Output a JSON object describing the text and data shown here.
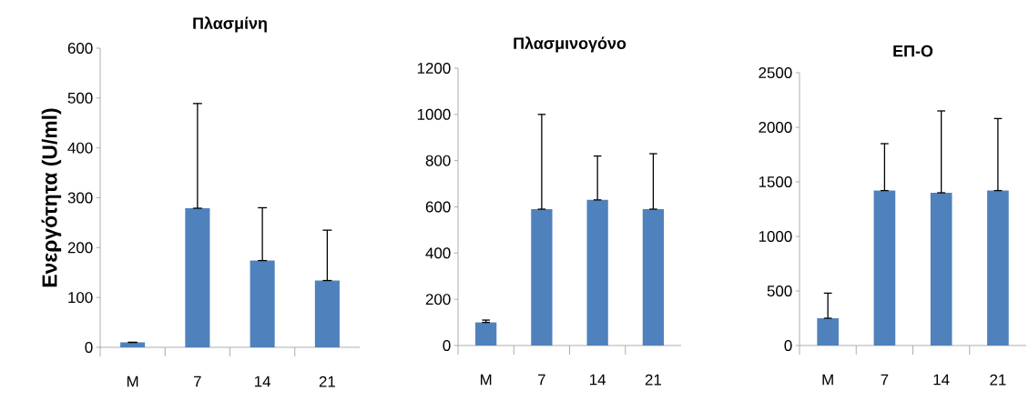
{
  "chart_data": [
    {
      "type": "bar",
      "title": "Πλασμίνη",
      "ylabel": "Ενεργότητα (U/ml)",
      "categories": [
        "M",
        "7",
        "14",
        "21"
      ],
      "values": [
        10,
        279,
        174,
        134
      ],
      "errors": [
        [
          10,
          10
        ],
        [
          279,
          489
        ],
        [
          174,
          280
        ],
        [
          134,
          235
        ]
      ],
      "color": "#4f81bd",
      "ylim": [
        0,
        600
      ],
      "yticks": [
        0,
        100,
        200,
        300,
        400,
        500,
        600
      ]
    },
    {
      "type": "bar",
      "title": "Πλασμινογόνο",
      "categories": [
        "M",
        "7",
        "14",
        "21"
      ],
      "values": [
        100,
        590,
        630,
        590
      ],
      "errors": [
        [
          100,
          110
        ],
        [
          590,
          1000
        ],
        [
          630,
          820
        ],
        [
          590,
          830
        ]
      ],
      "color": "#4f81bd",
      "ylim": [
        0,
        1200
      ],
      "yticks": [
        0,
        200,
        400,
        600,
        800,
        1000,
        1200
      ]
    },
    {
      "type": "bar",
      "title": "ΕΠ-Ο",
      "categories": [
        "M",
        "7",
        "14",
        "21"
      ],
      "values": [
        250,
        1420,
        1400,
        1420
      ],
      "errors": [
        [
          250,
          480
        ],
        [
          1420,
          1850
        ],
        [
          1400,
          2150
        ],
        [
          1420,
          2080
        ]
      ],
      "color": "#4f81bd",
      "ylim": [
        0,
        2500
      ],
      "yticks": [
        0,
        500,
        1000,
        1500,
        2000,
        2500
      ]
    }
  ]
}
